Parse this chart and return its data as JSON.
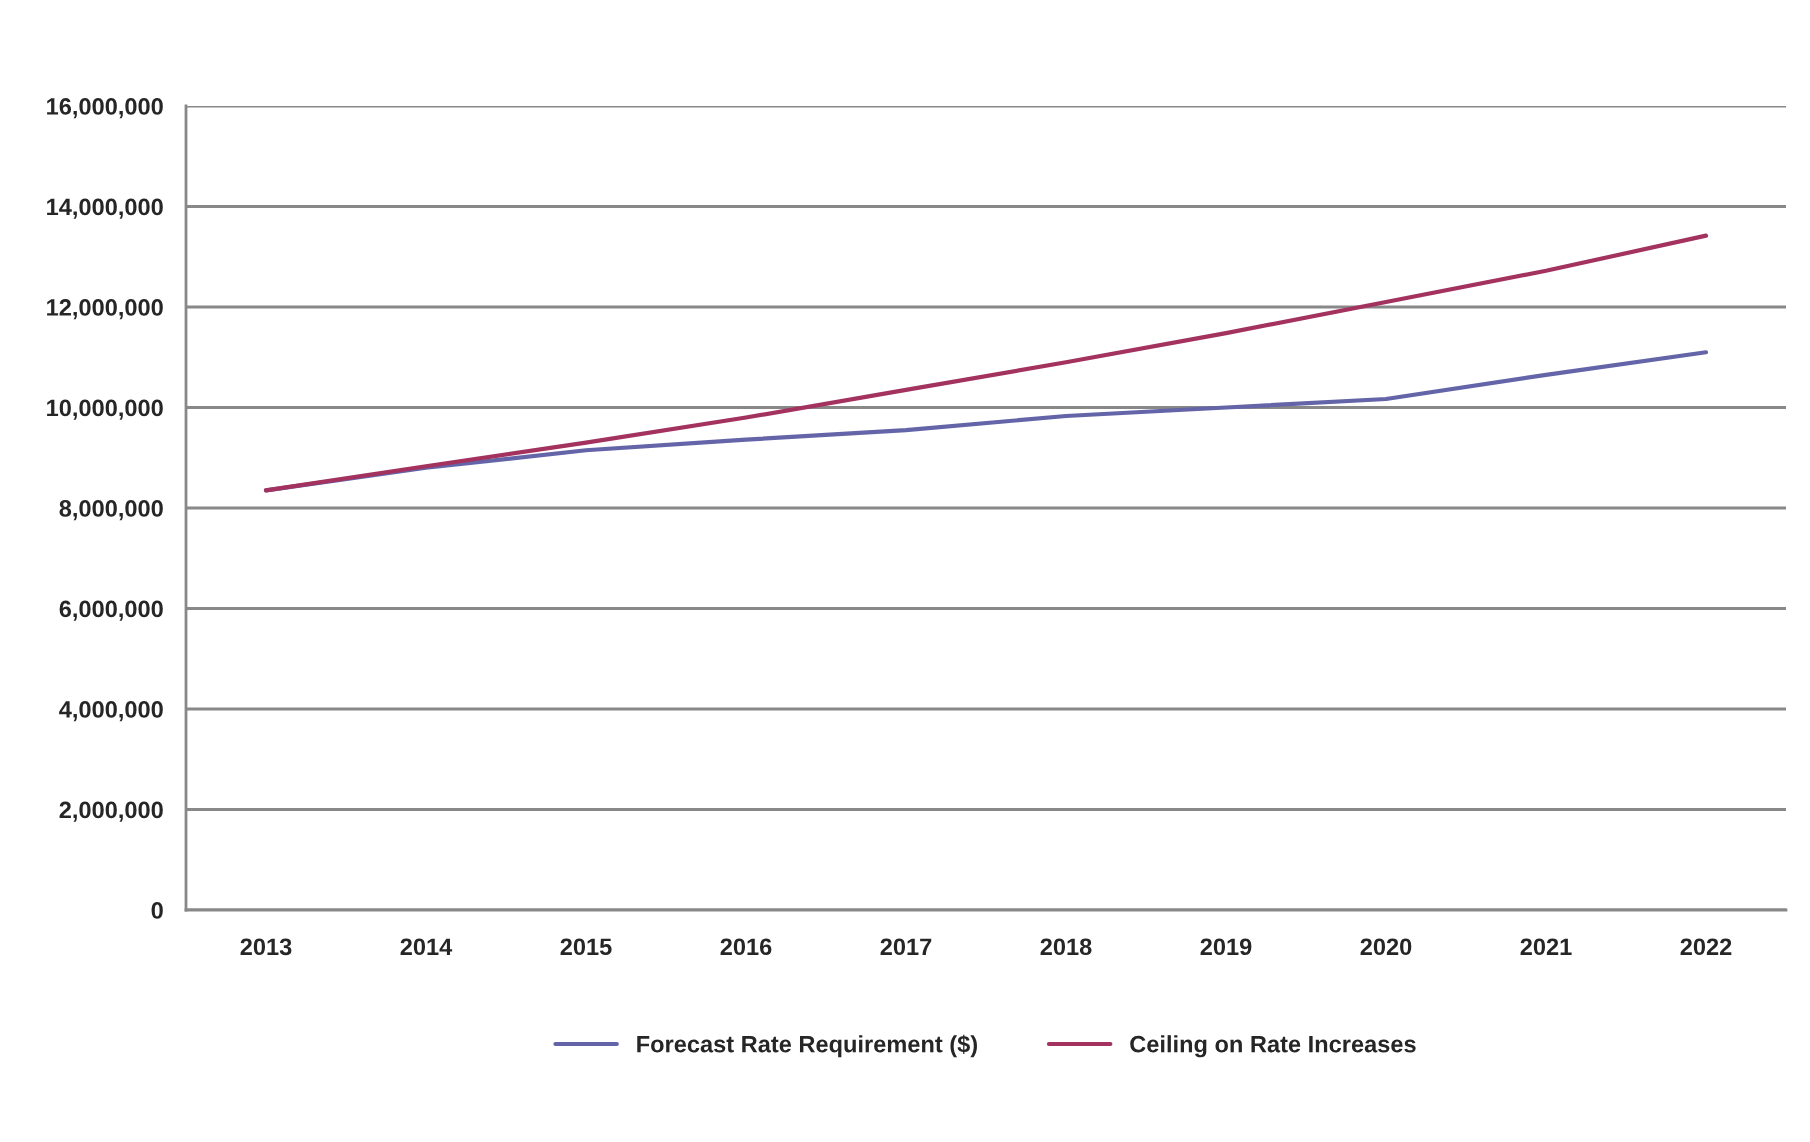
{
  "chart_data": {
    "type": "line",
    "categories": [
      "2013",
      "2014",
      "2015",
      "2016",
      "2017",
      "2018",
      "2019",
      "2020",
      "2021",
      "2022"
    ],
    "series": [
      {
        "name": "Forecast Rate Requirement ($)",
        "color": "#6464a8",
        "values": [
          8350000,
          8800000,
          9150000,
          9360000,
          9550000,
          9830000,
          10000000,
          10170000,
          10650000,
          11100000
        ]
      },
      {
        "name": "Ceiling on Rate Increases",
        "color": "#a3325f",
        "values": [
          8350000,
          8830000,
          9300000,
          9800000,
          10350000,
          10900000,
          11480000,
          12100000,
          12720000,
          13420000
        ]
      }
    ],
    "ylim": [
      0,
      16000000
    ],
    "yticks": [
      0,
      {
        "value": 2000000,
        "label": "2,000,000"
      },
      {
        "value": 4000000,
        "label": "4,000,000"
      },
      {
        "value": 6000000,
        "label": "6,000,000"
      },
      {
        "value": 8000000,
        "label": "8,000,000"
      },
      {
        "value": 10000000,
        "label": "10,000,000"
      },
      {
        "value": 12000000,
        "label": "12,000,000"
      },
      {
        "value": 14000000,
        "label": "14,000,000"
      },
      {
        "value": 16000000,
        "label": "16,000,000"
      }
    ],
    "grid": "y",
    "legend": "bottom",
    "marker": "none",
    "line_style": "solid"
  }
}
